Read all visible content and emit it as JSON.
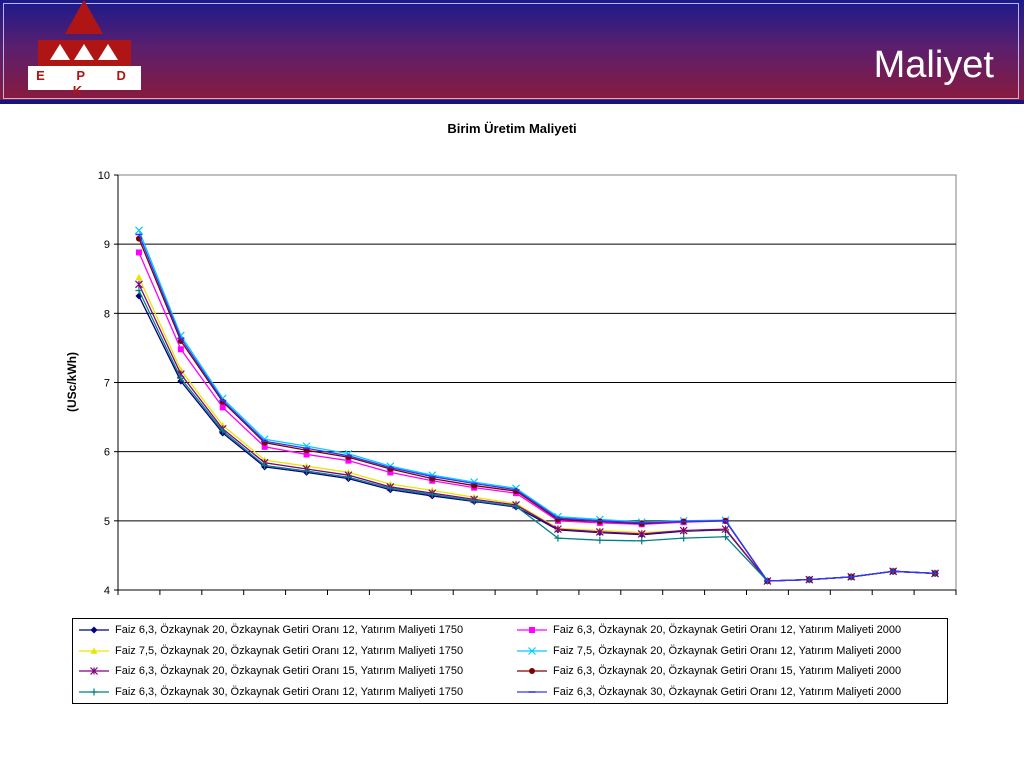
{
  "header": {
    "title": "Maliyet",
    "logo_text": "E P D K",
    "colors": {
      "top": "#1a1a8c",
      "bottom": "#8c1a3a",
      "logo": "#b01515"
    }
  },
  "chart_data": {
    "type": "line",
    "title": "Birim Üretim Maliyeti",
    "xlabel": "",
    "ylabel": "(USc/kWh)",
    "ylim": [
      4,
      10
    ],
    "yticks": [
      4,
      5,
      6,
      7,
      8,
      9,
      10
    ],
    "grid": true,
    "legend_position": "bottom",
    "x": [
      1,
      2,
      3,
      4,
      5,
      6,
      7,
      8,
      9,
      10,
      11,
      12,
      13,
      14,
      15,
      16,
      17,
      18,
      19,
      20
    ],
    "series": [
      {
        "name": "Faiz 6,3, Özkaynak 20, Özkaynak Getiri Oranı 12, Yatırım Maliyeti 1750",
        "color": "#000080",
        "marker": "diamond",
        "values": [
          8.25,
          7.02,
          6.27,
          5.78,
          5.7,
          5.61,
          5.45,
          5.36,
          5.28,
          5.2,
          4.87,
          4.83,
          4.8,
          4.85,
          4.87,
          4.13,
          4.15,
          4.19,
          4.27,
          4.24
        ]
      },
      {
        "name": "Faiz 6,3, Özkaynak 20, Özkaynak Getiri Oranı 12, Yatırım Maliyeti 2000",
        "color": "#ff00ff",
        "marker": "square",
        "values": [
          8.88,
          7.48,
          6.64,
          6.07,
          5.96,
          5.87,
          5.7,
          5.58,
          5.48,
          5.4,
          5.0,
          4.97,
          4.95,
          4.98,
          5.0,
          4.13,
          4.15,
          4.19,
          4.27,
          4.24
        ]
      },
      {
        "name": "Faiz 7,5, Özkaynak 20, Özkaynak Getiri Oranı 12, Yatırım Maliyeti 1750",
        "color": "#e6e600",
        "marker": "triangle",
        "values": [
          8.52,
          7.18,
          6.38,
          5.88,
          5.79,
          5.7,
          5.53,
          5.44,
          5.34,
          5.25,
          4.89,
          4.86,
          4.83,
          4.86,
          4.88,
          4.13,
          4.15,
          4.19,
          4.27,
          4.24
        ]
      },
      {
        "name": "Faiz 7,5, Özkaynak 20, Özkaynak Getiri Oranı 12, Yatırım Maliyeti 2000",
        "color": "#00ccff",
        "marker": "x",
        "values": [
          9.2,
          7.68,
          6.77,
          6.18,
          6.08,
          5.97,
          5.79,
          5.66,
          5.56,
          5.47,
          5.06,
          5.02,
          4.98,
          5.0,
          5.01,
          4.13,
          4.15,
          4.19,
          4.27,
          4.24
        ]
      },
      {
        "name": "Faiz 6,3, Özkaynak 20, Özkaynak Getiri Oranı 15, Yatırım Maliyeti 1750",
        "color": "#800080",
        "marker": "star",
        "values": [
          8.42,
          7.12,
          6.33,
          5.84,
          5.75,
          5.66,
          5.49,
          5.4,
          5.31,
          5.23,
          4.88,
          4.84,
          4.81,
          4.86,
          4.88,
          4.13,
          4.15,
          4.19,
          4.27,
          4.24
        ]
      },
      {
        "name": "Faiz 6,3, Özkaynak 20, Özkaynak Getiri Oranı 15, Yatırım Maliyeti 2000",
        "color": "#800000",
        "marker": "circle",
        "values": [
          9.08,
          7.6,
          6.72,
          6.13,
          6.02,
          5.92,
          5.75,
          5.61,
          5.51,
          5.43,
          5.02,
          4.99,
          4.96,
          4.99,
          5.0,
          4.13,
          4.15,
          4.19,
          4.27,
          4.24
        ]
      },
      {
        "name": "Faiz 6,3, Özkaynak 30, Özkaynak Getiri Oranı 12, Yatırım Maliyeti 1750",
        "color": "#008080",
        "marker": "plus",
        "values": [
          8.33,
          7.06,
          6.3,
          5.8,
          5.72,
          5.63,
          5.47,
          5.38,
          5.29,
          5.21,
          4.75,
          4.72,
          4.71,
          4.75,
          4.77,
          4.13,
          4.15,
          4.19,
          4.27,
          4.24
        ]
      },
      {
        "name": "Faiz 6,3, Özkaynak 30, Özkaynak Getiri Oranı 12, Yatırım Maliyeti 2000",
        "color": "#3333ff",
        "marker": "dash",
        "values": [
          9.14,
          7.64,
          6.74,
          6.15,
          6.05,
          5.94,
          5.77,
          5.64,
          5.54,
          5.45,
          5.04,
          5.0,
          4.97,
          4.99,
          5.0,
          4.13,
          4.15,
          4.19,
          4.27,
          4.24
        ]
      }
    ]
  }
}
